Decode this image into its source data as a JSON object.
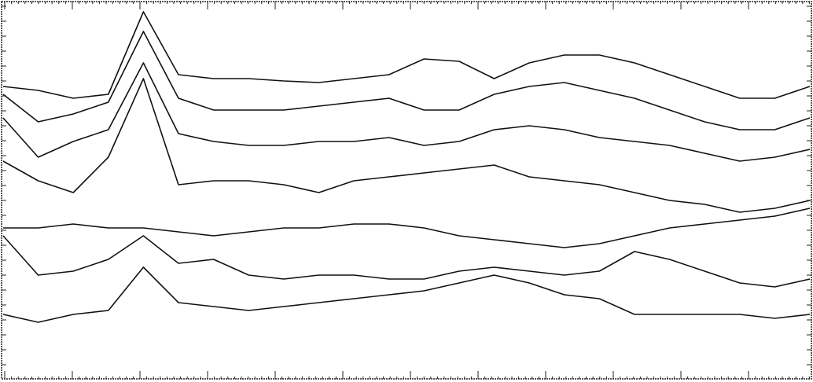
{
  "chart_data": {
    "type": "line",
    "categories": [
      null,
      null,
      null,
      null,
      null,
      null,
      null,
      null,
      null,
      null,
      null,
      null,
      null,
      null,
      null,
      null,
      null,
      null,
      null,
      null,
      null,
      null,
      null,
      null
    ],
    "ylim": [
      486,
      0
    ],
    "series": [
      {
        "color": "#111111",
        "values": [
          110,
          115,
          125,
          120,
          15,
          95,
          100,
          100,
          103,
          105,
          100,
          95,
          75,
          78,
          100,
          80,
          70,
          70,
          80,
          95,
          110,
          125,
          125,
          110
        ]
      },
      {
        "color": "#111111",
        "values": [
          120,
          155,
          145,
          130,
          40,
          125,
          140,
          140,
          140,
          135,
          130,
          125,
          140,
          140,
          120,
          110,
          105,
          115,
          125,
          140,
          155,
          165,
          165,
          150
        ]
      },
      {
        "color": "#111111",
        "values": [
          150,
          200,
          180,
          165,
          80,
          170,
          180,
          185,
          185,
          180,
          180,
          175,
          185,
          180,
          165,
          160,
          165,
          175,
          180,
          185,
          195,
          205,
          200,
          190
        ]
      },
      {
        "color": "#111111",
        "values": [
          205,
          230,
          245,
          200,
          100,
          235,
          230,
          230,
          235,
          245,
          230,
          225,
          220,
          215,
          210,
          225,
          230,
          235,
          245,
          255,
          260,
          270,
          265,
          255
        ]
      },
      {
        "color": "#111111",
        "values": [
          290,
          290,
          285,
          290,
          290,
          295,
          300,
          295,
          290,
          290,
          285,
          285,
          290,
          300,
          305,
          310,
          315,
          310,
          300,
          290,
          285,
          280,
          275,
          265
        ]
      },
      {
        "color": "#111111",
        "values": [
          300,
          350,
          345,
          330,
          300,
          335,
          330,
          350,
          355,
          350,
          350,
          355,
          355,
          345,
          340,
          345,
          350,
          345,
          320,
          330,
          345,
          360,
          365,
          355
        ]
      },
      {
        "color": "#111111",
        "values": [
          400,
          410,
          400,
          395,
          340,
          385,
          390,
          395,
          390,
          385,
          380,
          375,
          370,
          360,
          350,
          360,
          375,
          380,
          400,
          400,
          400,
          400,
          405,
          400
        ]
      }
    ]
  }
}
